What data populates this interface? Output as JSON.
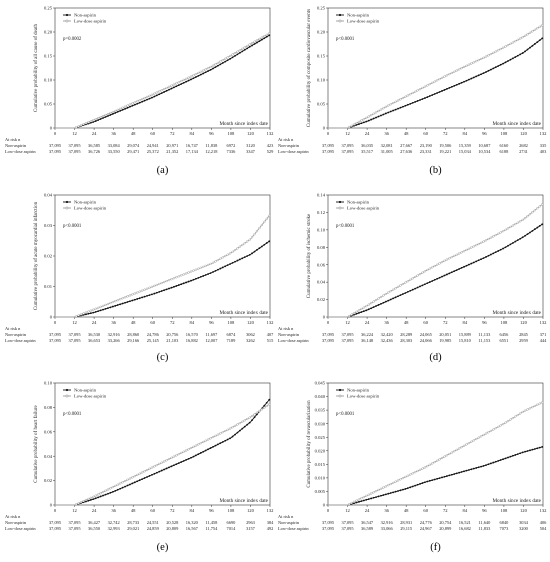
{
  "figure": {
    "legend": [
      "Non-aspirin",
      "Low-dose aspirin"
    ],
    "xlabel": "Month since index date",
    "at_risk_label": "At risk n",
    "colors": {
      "non_aspirin": "#111111",
      "low_dose_aspirin": "#9a9a9a"
    }
  },
  "chart_data": [
    {
      "type": "line",
      "panel_label": "(a)",
      "ylabel": "Cumulative probability of all cause of death",
      "p_value": "p=0.0002",
      "x": [
        0,
        12,
        24,
        36,
        48,
        60,
        72,
        84,
        96,
        108,
        120,
        132
      ],
      "ylim": [
        0,
        0.25
      ],
      "yticks": [
        "0",
        "0.05",
        "0.10",
        "0.15",
        "0.20",
        "0.25"
      ],
      "xlim": [
        0,
        132
      ],
      "series": [
        {
          "name": "Non-aspirin",
          "values": [
            0,
            0,
            0.013,
            0.03,
            0.047,
            0.064,
            0.083,
            0.102,
            0.122,
            0.145,
            0.17,
            0.194
          ]
        },
        {
          "name": "Low-dose aspirin",
          "values": [
            0,
            0,
            0.017,
            0.034,
            0.052,
            0.07,
            0.089,
            0.108,
            0.128,
            0.151,
            0.175,
            0.198
          ]
        }
      ],
      "at_risk": {
        "Non-aspirin": [
          "37,095",
          "37,095",
          "36,585",
          "33,084",
          "29,074",
          "24,941",
          "20,971",
          "16,747",
          "11,838",
          "6972",
          "3120",
          "423"
        ],
        "Low-dose aspirin": [
          "37,095",
          "37,095",
          "36,726",
          "33,550",
          "29,471",
          "25,372",
          "21,352",
          "17,134",
          "12,218",
          "7336",
          "3347",
          "529"
        ]
      }
    },
    {
      "type": "line",
      "panel_label": "(b)",
      "ylabel": "Cumulative probability of composite cardiovascular events",
      "p_value": "p<0.0001",
      "x": [
        0,
        12,
        24,
        36,
        48,
        60,
        72,
        84,
        96,
        108,
        120,
        132
      ],
      "ylim": [
        0,
        0.25
      ],
      "yticks": [
        "0",
        "0.05",
        "0.10",
        "0.15",
        "0.20",
        "0.25"
      ],
      "xlim": [
        0,
        132
      ],
      "series": [
        {
          "name": "Non-aspirin",
          "values": [
            0,
            0,
            0.014,
            0.031,
            0.047,
            0.063,
            0.08,
            0.097,
            0.115,
            0.135,
            0.157,
            0.188
          ]
        },
        {
          "name": "Low-dose aspirin",
          "values": [
            0,
            0,
            0.022,
            0.045,
            0.066,
            0.087,
            0.108,
            0.128,
            0.147,
            0.168,
            0.19,
            0.215
          ]
        }
      ],
      "at_risk": {
        "Non-aspirin": [
          "37,095",
          "37,095",
          "36,035",
          "32,081",
          "27,667",
          "23,190",
          "19,506",
          "15,359",
          "10,687",
          "6160",
          "2682",
          "335"
        ],
        "Low-dose aspirin": [
          "37,095",
          "37,095",
          "35,517",
          "31,005",
          "27,636",
          "23,331",
          "19,221",
          "15,034",
          "10,534",
          "6188",
          "2731",
          "403"
        ]
      }
    },
    {
      "type": "line",
      "panel_label": "(c)",
      "ylabel": "Cumulative probability of acute myocardial infarction",
      "p_value": "p<0.0001",
      "x": [
        0,
        12,
        24,
        36,
        48,
        60,
        72,
        84,
        96,
        108,
        120,
        132
      ],
      "ylim": [
        0,
        0.04
      ],
      "yticks": [
        "0",
        "0.01",
        "0.02",
        "0.03",
        "0.04"
      ],
      "xlim": [
        0,
        132
      ],
      "series": [
        {
          "name": "Non-aspirin",
          "values": [
            0,
            0,
            0.0015,
            0.0035,
            0.0055,
            0.0075,
            0.0097,
            0.012,
            0.0145,
            0.0175,
            0.0205,
            0.025
          ]
        },
        {
          "name": "Low-dose aspirin",
          "values": [
            0,
            0,
            0.0025,
            0.005,
            0.0075,
            0.01,
            0.0125,
            0.015,
            0.0175,
            0.021,
            0.0255,
            0.0335
          ]
        }
      ],
      "at_risk": {
        "Non-aspirin": [
          "37,095",
          "37,095",
          "36,530",
          "32,916",
          "28,860",
          "24,786",
          "20,756",
          "16,570",
          "11,697",
          "6874",
          "3062",
          "407"
        ],
        "Low-dose aspirin": [
          "37,095",
          "37,095",
          "36,653",
          "33,266",
          "29,166",
          "25,145",
          "21,103",
          "16,882",
          "12,007",
          "7189",
          "3262",
          "515"
        ]
      }
    },
    {
      "type": "line",
      "panel_label": "(d)",
      "ylabel": "Cumulative probability of ischemic stroke",
      "p_value": "p<0.0001",
      "x": [
        0,
        12,
        24,
        36,
        48,
        60,
        72,
        84,
        96,
        108,
        120,
        132
      ],
      "ylim": [
        0,
        0.14
      ],
      "yticks": [
        "0",
        "0.02",
        "0.04",
        "0.06",
        "0.08",
        "0.10",
        "0.12",
        "0.14"
      ],
      "xlim": [
        0,
        132
      ],
      "series": [
        {
          "name": "Non-aspirin",
          "values": [
            0,
            0,
            0.008,
            0.018,
            0.028,
            0.038,
            0.048,
            0.058,
            0.068,
            0.079,
            0.092,
            0.107
          ]
        },
        {
          "name": "Low-dose aspirin",
          "values": [
            0,
            0,
            0.013,
            0.027,
            0.04,
            0.053,
            0.065,
            0.076,
            0.087,
            0.099,
            0.112,
            0.13
          ]
        }
      ],
      "at_risk": {
        "Non-aspirin": [
          "37,095",
          "37,095",
          "36,224",
          "32,420",
          "28,289",
          "24,065",
          "20,051",
          "15,889",
          "11,133",
          "6456",
          "2845",
          "371"
        ],
        "Low-dose aspirin": [
          "37,095",
          "37,095",
          "36,148",
          "32,436",
          "28,303",
          "24,066",
          "19,985",
          "15,810",
          "11,153",
          "6551",
          "2959",
          "444"
        ]
      }
    },
    {
      "type": "line",
      "panel_label": "(e)",
      "ylabel": "Cumulative probability of heart failure",
      "p_value": "p<0.0001",
      "x": [
        0,
        12,
        24,
        36,
        48,
        60,
        72,
        84,
        96,
        108,
        120,
        132
      ],
      "ylim": [
        0,
        0.1
      ],
      "yticks": [
        "0",
        "0.02",
        "0.04",
        "0.06",
        "0.08",
        "0.10"
      ],
      "xlim": [
        0,
        132
      ],
      "series": [
        {
          "name": "Non-aspirin",
          "values": [
            0,
            0,
            0.005,
            0.011,
            0.018,
            0.025,
            0.032,
            0.039,
            0.047,
            0.055,
            0.068,
            0.087
          ]
        },
        {
          "name": "Low-dose aspirin",
          "values": [
            0,
            0,
            0.007,
            0.015,
            0.023,
            0.031,
            0.039,
            0.047,
            0.055,
            0.063,
            0.072,
            0.083
          ]
        }
      ],
      "at_risk": {
        "Non-aspirin": [
          "37,095",
          "37,095",
          "36,427",
          "32,742",
          "28,733",
          "24,551",
          "20,528",
          "16,320",
          "11,458",
          "6690",
          "2963",
          "384"
        ],
        "Low-dose aspirin": [
          "37,095",
          "37,095",
          "36,550",
          "32,993",
          "29,021",
          "24,859",
          "20,809",
          "16,567",
          "11,754",
          "7014",
          "3157",
          "492"
        ]
      }
    },
    {
      "type": "line",
      "panel_label": "(f)",
      "ylabel": "Cumulative probability of revascularization",
      "p_value": "p<0.0001",
      "x": [
        0,
        12,
        24,
        36,
        48,
        60,
        72,
        84,
        96,
        108,
        120,
        132
      ],
      "ylim": [
        0,
        0.045
      ],
      "yticks": [
        "0",
        "0.005",
        "0.010",
        "0.015",
        "0.020",
        "0.025",
        "0.030",
        "0.035",
        "0.040",
        "0.045"
      ],
      "xlim": [
        0,
        132
      ],
      "series": [
        {
          "name": "Non-aspirin",
          "values": [
            0,
            0,
            0.002,
            0.004,
            0.006,
            0.0085,
            0.0105,
            0.0125,
            0.0145,
            0.017,
            0.0195,
            0.0215
          ]
        },
        {
          "name": "Low-dose aspirin",
          "values": [
            0,
            0,
            0.0035,
            0.007,
            0.0105,
            0.014,
            0.018,
            0.022,
            0.026,
            0.03,
            0.0345,
            0.038
          ]
        }
      ],
      "at_risk": {
        "Non-aspirin": [
          "37,095",
          "37,095",
          "36,547",
          "32,916",
          "28,931",
          "24,776",
          "20,754",
          "16,521",
          "11,640",
          "6840",
          "3034",
          "406"
        ],
        "Low-dose aspirin": [
          "37,095",
          "37,095",
          "36,589",
          "33,066",
          "29,115",
          "24,967",
          "20,899",
          "16,682",
          "11,833",
          "7073",
          "3200",
          "504"
        ]
      }
    }
  ]
}
